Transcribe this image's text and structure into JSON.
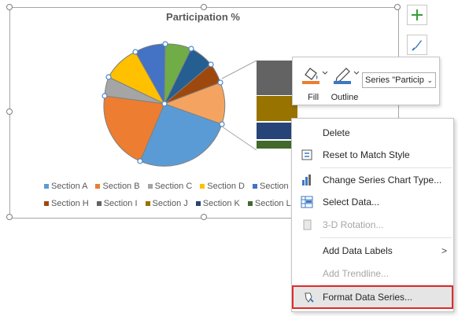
{
  "chart": {
    "title": "Participation %",
    "legend_row1": [
      "Section A",
      "Section B",
      "Section C",
      "Section D",
      "Section E",
      "Se"
    ],
    "legend_row2": [
      "Section H",
      "Section I",
      "Section J",
      "Section K",
      "Section L",
      ""
    ],
    "colors": {
      "Section A": "#5b9bd5",
      "Section B": "#ed7d31",
      "Section C": "#a5a5a5",
      "Section D": "#ffc000",
      "Section E": "#4472c4",
      "Section F": "#70ad47",
      "Section G": "#255e91",
      "Section H": "#9e480e",
      "Section I": "#636363",
      "Section J": "#997300",
      "Section K": "#264478",
      "Section L": "#43682b"
    }
  },
  "side_buttons": {
    "add_element_icon": "plus-icon",
    "styles_icon": "brush-icon"
  },
  "mini_toolbar": {
    "fill_label": "Fill",
    "outline_label": "Outline",
    "series_value": "Series \"Particip"
  },
  "context_menu": {
    "items": [
      {
        "label": "Delete",
        "enabled": true
      },
      {
        "label": "Reset to Match Style",
        "enabled": true
      },
      {
        "label": "Change Series Chart Type...",
        "enabled": true
      },
      {
        "label": "Select Data...",
        "enabled": true
      },
      {
        "label": "3-D Rotation...",
        "enabled": false
      },
      {
        "label": "Add Data Labels",
        "enabled": true
      },
      {
        "label": "Add Trendline...",
        "enabled": false
      },
      {
        "label": "Format Data Series...",
        "enabled": true,
        "highlighted": true
      }
    ]
  }
}
